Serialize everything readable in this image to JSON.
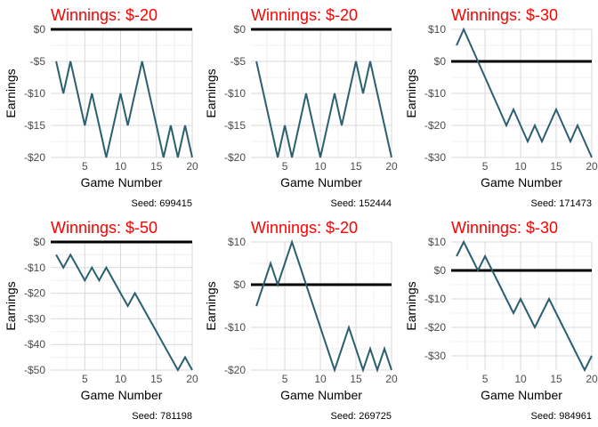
{
  "chart_data": [
    {
      "type": "line",
      "title": "Winnings: $-20",
      "xlabel": "Game Number",
      "ylabel": "Earnings",
      "caption": "Seed: 699415",
      "xlim": [
        1,
        20
      ],
      "ylim": [
        -20,
        0
      ],
      "y_ticks": [
        0,
        -5,
        -10,
        -15,
        -20
      ],
      "y_tick_labels": [
        "$0",
        "-$5",
        "-$10",
        "-$15",
        "-$20"
      ],
      "x_ticks": [
        5,
        10,
        15,
        20
      ],
      "x_tick_labels": [
        "5",
        "10",
        "15",
        "20"
      ],
      "x": [
        1,
        2,
        3,
        4,
        5,
        6,
        7,
        8,
        9,
        10,
        11,
        12,
        13,
        14,
        15,
        16,
        17,
        18,
        19,
        20
      ],
      "values": [
        -5,
        -10,
        -5,
        -10,
        -15,
        -10,
        -15,
        -20,
        -15,
        -10,
        -15,
        -10,
        -5,
        -10,
        -15,
        -20,
        -15,
        -20,
        -15,
        -20
      ],
      "baseline": 0
    },
    {
      "type": "line",
      "title": "Winnings: $-20",
      "xlabel": "Game Number",
      "ylabel": "Earnings",
      "caption": "Seed: 152444",
      "xlim": [
        1,
        20
      ],
      "ylim": [
        -20,
        0
      ],
      "y_ticks": [
        0,
        -5,
        -10,
        -15,
        -20
      ],
      "y_tick_labels": [
        "$0",
        "-$5",
        "-$10",
        "-$15",
        "-$20"
      ],
      "x_ticks": [
        5,
        10,
        15,
        20
      ],
      "x_tick_labels": [
        "5",
        "10",
        "15",
        "20"
      ],
      "x": [
        1,
        2,
        3,
        4,
        5,
        6,
        7,
        8,
        9,
        10,
        11,
        12,
        13,
        14,
        15,
        16,
        17,
        18,
        19,
        20
      ],
      "values": [
        -5,
        -10,
        -15,
        -20,
        -15,
        -20,
        -15,
        -10,
        -15,
        -20,
        -15,
        -10,
        -15,
        -10,
        -5,
        -10,
        -5,
        -10,
        -15,
        -20
      ],
      "baseline": 0
    },
    {
      "type": "line",
      "title": "Winnings: $-30",
      "xlabel": "Game Number",
      "ylabel": "Earnings",
      "caption": "Seed: 171473",
      "xlim": [
        1,
        20
      ],
      "ylim": [
        -30,
        10
      ],
      "y_ticks": [
        10,
        0,
        -10,
        -20,
        -30
      ],
      "y_tick_labels": [
        "$10",
        "$0",
        "-$10",
        "-$20",
        "-$30"
      ],
      "x_ticks": [
        5,
        10,
        15,
        20
      ],
      "x_tick_labels": [
        "5",
        "10",
        "15",
        "20"
      ],
      "x": [
        1,
        2,
        3,
        4,
        5,
        6,
        7,
        8,
        9,
        10,
        11,
        12,
        13,
        14,
        15,
        16,
        17,
        18,
        19,
        20
      ],
      "values": [
        5,
        10,
        5,
        0,
        -5,
        -10,
        -15,
        -20,
        -15,
        -20,
        -25,
        -20,
        -25,
        -20,
        -15,
        -20,
        -25,
        -20,
        -25,
        -30
      ],
      "baseline": 0
    },
    {
      "type": "line",
      "title": "Winnings: $-50",
      "xlabel": "Game Number",
      "ylabel": "Earnings",
      "caption": "Seed: 781198",
      "xlim": [
        1,
        20
      ],
      "ylim": [
        -50,
        0
      ],
      "y_ticks": [
        0,
        -10,
        -20,
        -30,
        -40,
        -50
      ],
      "y_tick_labels": [
        "$0",
        "-$10",
        "-$20",
        "-$30",
        "-$40",
        "-$50"
      ],
      "x_ticks": [
        5,
        10,
        15,
        20
      ],
      "x_tick_labels": [
        "5",
        "10",
        "15",
        "20"
      ],
      "x": [
        1,
        2,
        3,
        4,
        5,
        6,
        7,
        8,
        9,
        10,
        11,
        12,
        13,
        14,
        15,
        16,
        17,
        18,
        19,
        20
      ],
      "values": [
        -5,
        -10,
        -5,
        -10,
        -15,
        -10,
        -15,
        -10,
        -15,
        -20,
        -25,
        -20,
        -25,
        -30,
        -35,
        -40,
        -45,
        -50,
        -45,
        -50
      ],
      "baseline": 0
    },
    {
      "type": "line",
      "title": "Winnings: $-20",
      "xlabel": "Game Number",
      "ylabel": "Earnings",
      "caption": "Seed: 269725",
      "xlim": [
        1,
        20
      ],
      "ylim": [
        -20,
        10
      ],
      "y_ticks": [
        10,
        0,
        -10,
        -20
      ],
      "y_tick_labels": [
        "$10",
        "$0",
        "-$10",
        "-$20"
      ],
      "x_ticks": [
        5,
        10,
        15,
        20
      ],
      "x_tick_labels": [
        "5",
        "10",
        "15",
        "20"
      ],
      "x": [
        1,
        2,
        3,
        4,
        5,
        6,
        7,
        8,
        9,
        10,
        11,
        12,
        13,
        14,
        15,
        16,
        17,
        18,
        19,
        20
      ],
      "values": [
        -5,
        0,
        5,
        0,
        5,
        10,
        5,
        0,
        -5,
        -10,
        -15,
        -20,
        -15,
        -10,
        -15,
        -20,
        -15,
        -20,
        -15,
        -20
      ],
      "baseline": 0
    },
    {
      "type": "line",
      "title": "Winnings: $-30",
      "xlabel": "Game Number",
      "ylabel": "Earnings",
      "caption": "Seed: 984961",
      "xlim": [
        1,
        20
      ],
      "ylim": [
        -35,
        10
      ],
      "y_ticks": [
        10,
        0,
        -10,
        -20,
        -30
      ],
      "y_tick_labels": [
        "$10",
        "$0",
        "-$10",
        "-$20",
        "-$30"
      ],
      "x_ticks": [
        5,
        10,
        15,
        20
      ],
      "x_tick_labels": [
        "5",
        "10",
        "15",
        "20"
      ],
      "x": [
        1,
        2,
        3,
        4,
        5,
        6,
        7,
        8,
        9,
        10,
        11,
        12,
        13,
        14,
        15,
        16,
        17,
        18,
        19,
        20
      ],
      "values": [
        5,
        10,
        5,
        0,
        5,
        0,
        -5,
        -10,
        -15,
        -10,
        -15,
        -20,
        -15,
        -10,
        -15,
        -20,
        -25,
        -30,
        -35,
        -30
      ],
      "baseline": 0
    }
  ],
  "colors": {
    "title": "#ff0000",
    "line": "#2c5f6f",
    "baseline": "#000000",
    "grid_major": "#d9d9d9",
    "grid_minor": "#f0f0f0",
    "tick_text": "#4d4d4d",
    "axis_title": "#000000"
  }
}
